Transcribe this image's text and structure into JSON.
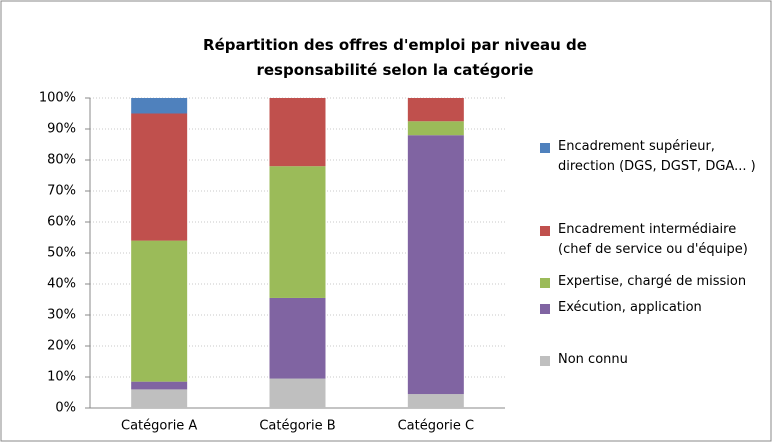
{
  "chart_data": {
    "type": "stacked_bar",
    "title": "Répartition des offres d'emploi par niveau de responsabilité selon la catégorie",
    "categories": [
      "Catégorie A",
      "Catégorie B",
      "Catégorie C"
    ],
    "series": [
      {
        "name": "Encadrement supérieur, direction (DGS, DGST, DGA... )",
        "color": "#4f81bd",
        "values": [
          5,
          0,
          0
        ]
      },
      {
        "name": "Encadrement intermédiaire (chef de service ou d'équipe)",
        "color": "#c0504d",
        "values": [
          41,
          22,
          7.5
        ]
      },
      {
        "name": "Expertise, chargé de mission",
        "color": "#9bbb59",
        "values": [
          45.5,
          42.5,
          4.5
        ]
      },
      {
        "name": "Exécution, application",
        "color": "#8064a2",
        "values": [
          2.5,
          26,
          83.5
        ]
      },
      {
        "name": "Non connu",
        "color": "#bfbfbf",
        "values": [
          6,
          9.5,
          4.5
        ]
      }
    ],
    "ylim": [
      0,
      100
    ],
    "yticks": [
      {
        "value": 0,
        "label": "0%"
      },
      {
        "value": 10,
        "label": "10%"
      },
      {
        "value": 20,
        "label": "20%"
      },
      {
        "value": 30,
        "label": "30%"
      },
      {
        "value": 40,
        "label": "40%"
      },
      {
        "value": 50,
        "label": "50%"
      },
      {
        "value": 60,
        "label": "60%"
      },
      {
        "value": 70,
        "label": "70%"
      },
      {
        "value": 80,
        "label": "80%"
      },
      {
        "value": 90,
        "label": "90%"
      },
      {
        "value": 100,
        "label": "100%"
      }
    ],
    "grid": true,
    "legend": "right"
  }
}
